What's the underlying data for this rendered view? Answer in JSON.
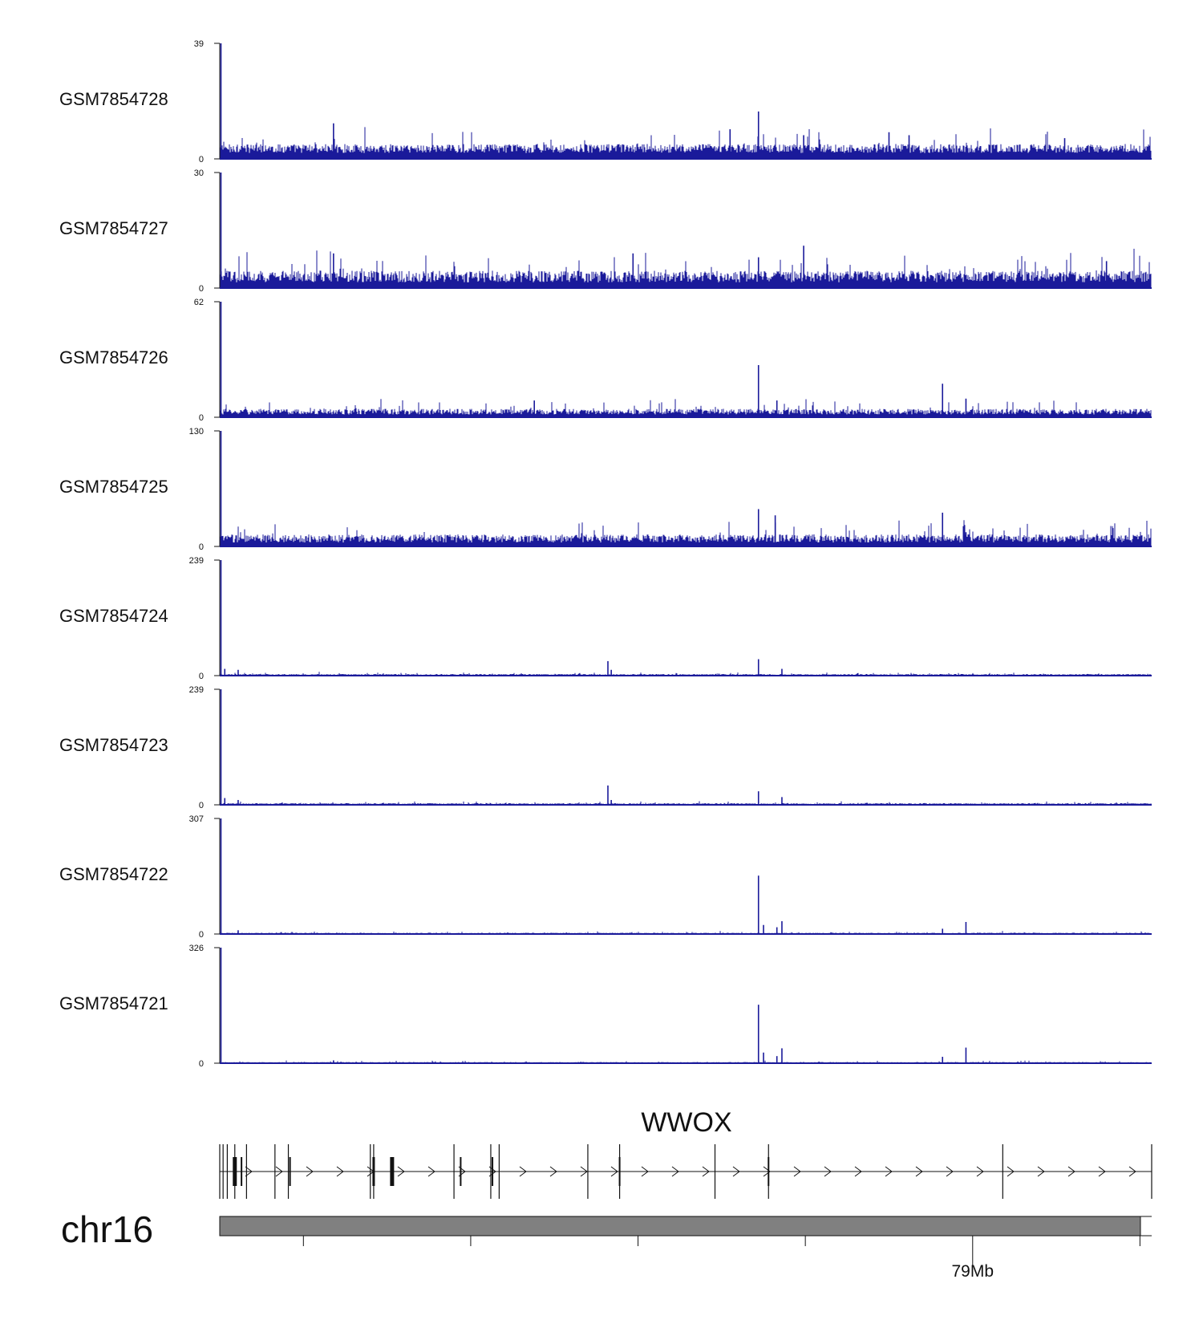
{
  "chart_data": {
    "type": "genome-track",
    "chromosome": "chr16",
    "gene": {
      "name": "WWOX",
      "strand": "+"
    },
    "x_axis": {
      "ticks": [
        {
          "position": 0.5
        },
        {
          "position": 1.5
        },
        {
          "position": 2.5
        },
        {
          "position": 3.5
        },
        {
          "position": 4.5,
          "label": "79Mb"
        },
        {
          "position": 5.5
        }
      ],
      "range": [
        0,
        5.57
      ]
    },
    "tracks": [
      {
        "name": "GSM7854728",
        "ylim": [
          0,
          39
        ],
        "ymax_label": "39",
        "ymin_label": "0",
        "baseline": 4,
        "noise": 5,
        "peaks": [
          [
            0.0,
            39
          ],
          [
            0.68,
            12
          ],
          [
            3.05,
            10
          ],
          [
            3.22,
            16
          ],
          [
            3.49,
            8
          ],
          [
            4.0,
            9
          ],
          [
            4.12,
            8
          ],
          [
            5.05,
            7
          ]
        ]
      },
      {
        "name": "GSM7854727",
        "ylim": [
          0,
          30
        ],
        "ymax_label": "30",
        "ymin_label": "0",
        "baseline": 3,
        "noise": 5,
        "peaks": [
          [
            0.0,
            30
          ],
          [
            0.68,
            9
          ],
          [
            2.47,
            9
          ],
          [
            3.22,
            8
          ],
          [
            3.49,
            11
          ],
          [
            5.3,
            7
          ]
        ]
      },
      {
        "name": "GSM7854726",
        "ylim": [
          0,
          62
        ],
        "ymax_label": "62",
        "ymin_label": "0",
        "baseline": 3,
        "noise": 5,
        "peaks": [
          [
            0.0,
            62
          ],
          [
            1.88,
            9
          ],
          [
            3.22,
            28
          ],
          [
            3.33,
            9
          ],
          [
            4.32,
            18
          ],
          [
            4.46,
            10
          ]
        ]
      },
      {
        "name": "GSM7854725",
        "ylim": [
          0,
          130
        ],
        "ymax_label": "130",
        "ymin_label": "0",
        "baseline": 3,
        "noise": 5,
        "peaks": [
          [
            0.0,
            130
          ],
          [
            0.68,
            6
          ],
          [
            1.88,
            10
          ],
          [
            3.22,
            42
          ],
          [
            3.32,
            35
          ],
          [
            4.32,
            38
          ],
          [
            4.46,
            16
          ]
        ]
      },
      {
        "name": "GSM7854724",
        "ylim": [
          0,
          239
        ],
        "ymax_label": "239",
        "ymin_label": "0",
        "baseline": 1,
        "noise": 2,
        "peaks": [
          [
            0.0,
            239
          ],
          [
            0.03,
            14
          ],
          [
            0.11,
            12
          ],
          [
            2.32,
            30
          ],
          [
            2.34,
            12
          ],
          [
            3.22,
            34
          ],
          [
            3.36,
            14
          ]
        ]
      },
      {
        "name": "GSM7854723",
        "ylim": [
          0,
          239
        ],
        "ymax_label": "239",
        "ymin_label": "0",
        "baseline": 1,
        "noise": 2,
        "peaks": [
          [
            0.0,
            239
          ],
          [
            0.03,
            14
          ],
          [
            0.11,
            10
          ],
          [
            2.32,
            40
          ],
          [
            2.34,
            10
          ],
          [
            3.22,
            28
          ],
          [
            3.36,
            16
          ]
        ]
      },
      {
        "name": "GSM7854722",
        "ylim": [
          0,
          307
        ],
        "ymax_label": "307",
        "ymin_label": "0",
        "baseline": 1,
        "noise": 2,
        "peaks": [
          [
            0.0,
            307
          ],
          [
            0.11,
            10
          ],
          [
            3.22,
            155
          ],
          [
            3.25,
            24
          ],
          [
            3.33,
            18
          ],
          [
            3.36,
            34
          ],
          [
            4.32,
            14
          ],
          [
            4.46,
            32
          ]
        ]
      },
      {
        "name": "GSM7854721",
        "ylim": [
          0,
          326
        ],
        "ymax_label": "326",
        "ymin_label": "0",
        "baseline": 1,
        "noise": 2,
        "peaks": [
          [
            0.0,
            326
          ],
          [
            0.68,
            8
          ],
          [
            3.22,
            165
          ],
          [
            3.25,
            30
          ],
          [
            3.33,
            20
          ],
          [
            3.36,
            42
          ],
          [
            4.32,
            18
          ],
          [
            4.46,
            44
          ]
        ]
      }
    ]
  },
  "colors": {
    "signal": "#1a1a9a",
    "axis": "#111111",
    "ideogram": "#808080"
  }
}
